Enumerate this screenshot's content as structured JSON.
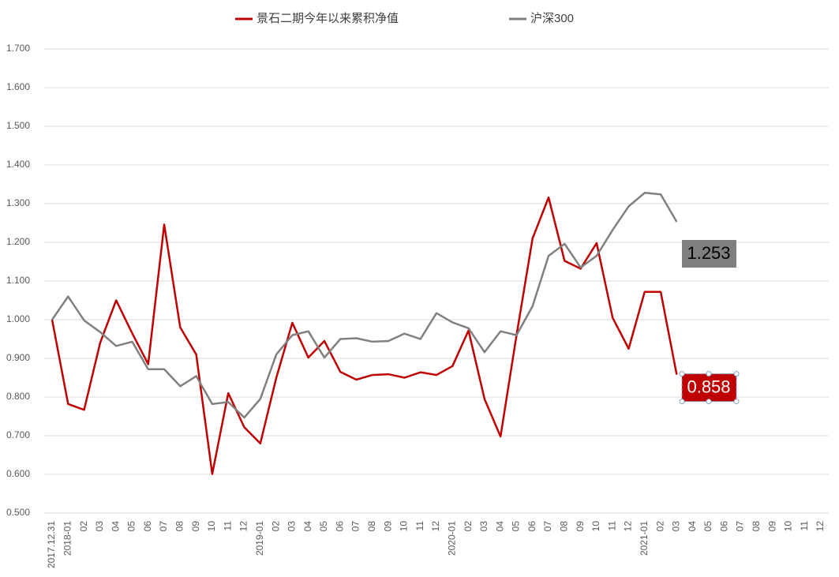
{
  "chart_data": {
    "type": "line",
    "categories": [
      "2017.12.31",
      "2018-01",
      "02",
      "03",
      "04",
      "05",
      "06",
      "07",
      "08",
      "09",
      "10",
      "11",
      "12",
      "2019-01",
      "02",
      "03",
      "04",
      "05",
      "06",
      "07",
      "08",
      "09",
      "10",
      "11",
      "12",
      "2020-01",
      "02",
      "03",
      "04",
      "05",
      "06",
      "07",
      "08",
      "09",
      "10",
      "11",
      "12",
      "2021-01",
      "02",
      "03",
      "04",
      "05",
      "06",
      "07",
      "08",
      "09",
      "10",
      "11",
      "12"
    ],
    "series": [
      {
        "name": "景石二期今年以来累积净值",
        "color": "#c00000",
        "values": [
          1.0,
          0.782,
          0.767,
          0.94,
          1.05,
          0.965,
          0.885,
          1.246,
          0.98,
          0.91,
          0.601,
          0.81,
          0.722,
          0.68,
          0.85,
          0.992,
          0.902,
          0.945,
          0.865,
          0.845,
          0.857,
          0.859,
          0.85,
          0.864,
          0.857,
          0.88,
          0.972,
          0.795,
          0.698,
          0.96,
          1.21,
          1.316,
          1.152,
          1.132,
          1.198,
          1.005,
          0.925,
          1.072,
          1.072,
          0.858,
          null,
          null,
          null,
          null,
          null,
          null,
          null,
          null,
          null
        ]
      },
      {
        "name": "沪深300",
        "color": "#808080",
        "values": [
          1.0,
          1.06,
          0.998,
          0.968,
          0.932,
          0.943,
          0.872,
          0.872,
          0.828,
          0.854,
          0.782,
          0.787,
          0.747,
          0.795,
          0.91,
          0.96,
          0.97,
          0.902,
          0.95,
          0.952,
          0.943,
          0.945,
          0.964,
          0.95,
          1.017,
          0.993,
          0.978,
          0.916,
          0.97,
          0.96,
          1.035,
          1.165,
          1.196,
          1.135,
          1.165,
          1.232,
          1.293,
          1.328,
          1.324,
          1.253,
          null,
          null,
          null,
          null,
          null,
          null,
          null,
          null,
          null
        ]
      }
    ],
    "ylim": [
      0.5,
      1.7
    ],
    "yticks": [
      {
        "value": 0.5,
        "label": "0.500"
      },
      {
        "value": 0.6,
        "label": "0.600"
      },
      {
        "value": 0.7,
        "label": "0.700"
      },
      {
        "value": 0.8,
        "label": "0.800"
      },
      {
        "value": 0.9,
        "label": "0.900"
      },
      {
        "value": 1.0,
        "label": "1.000"
      },
      {
        "value": 1.1,
        "label": "1.100"
      },
      {
        "value": 1.2,
        "label": "1.200"
      },
      {
        "value": 1.3,
        "label": "1.300"
      },
      {
        "value": 1.4,
        "label": "1.400"
      },
      {
        "value": 1.5,
        "label": "1.500"
      },
      {
        "value": 1.6,
        "label": "1.600"
      },
      {
        "value": 1.7,
        "label": "1.700"
      }
    ],
    "grid": true
  }
}
